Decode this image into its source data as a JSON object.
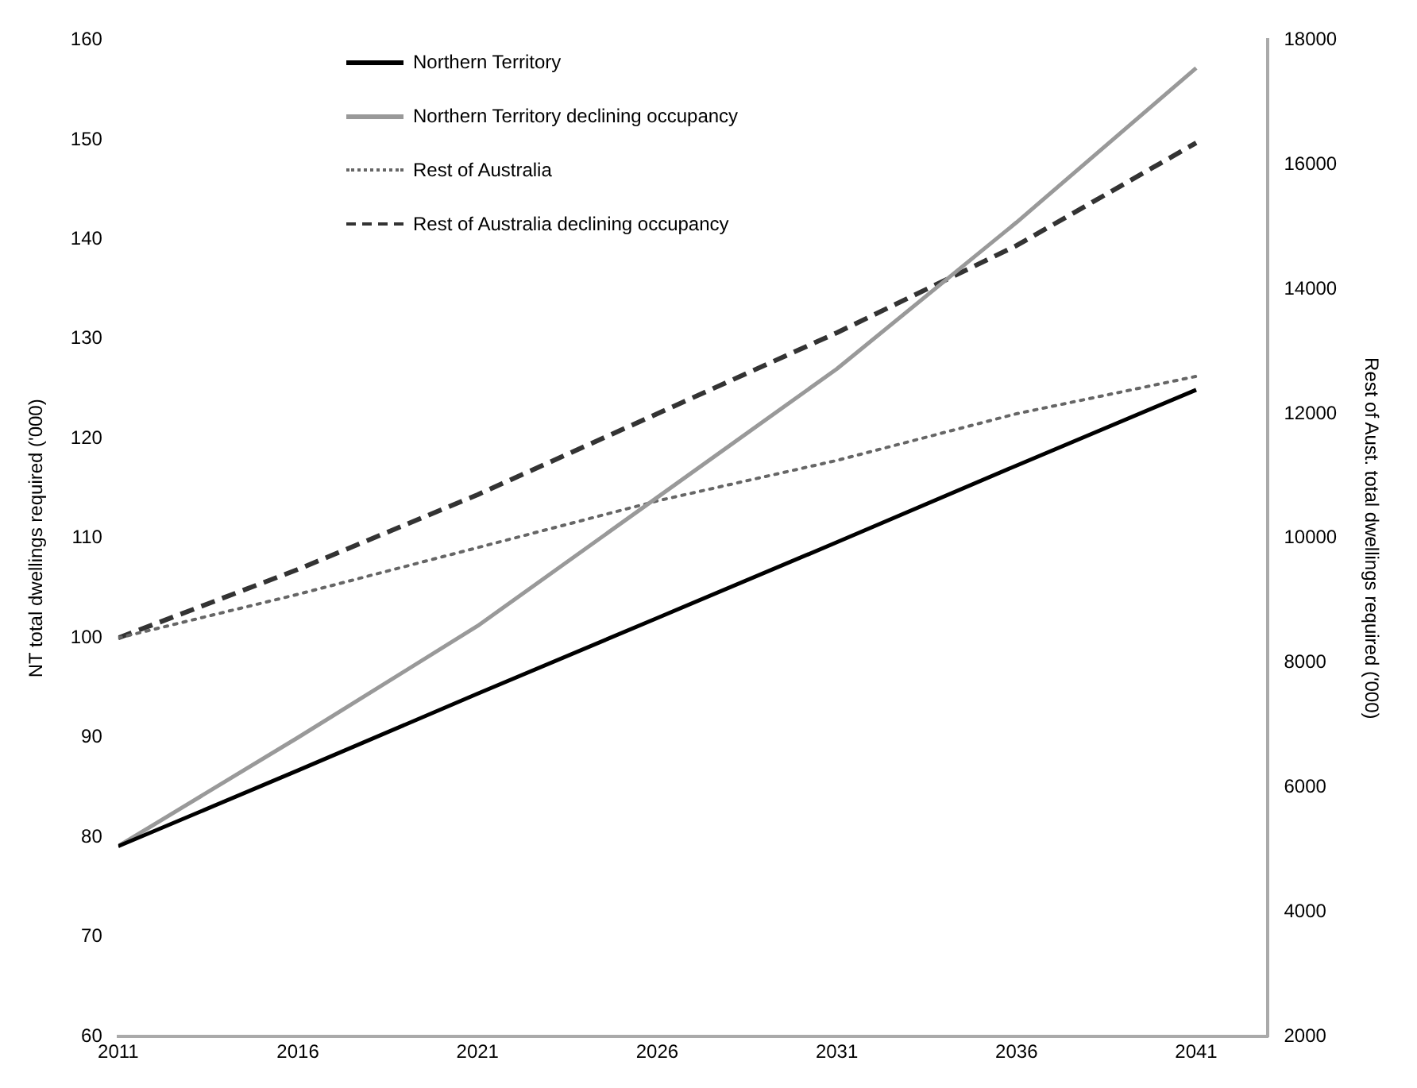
{
  "chart_data": {
    "type": "line",
    "x": [
      2011,
      2016,
      2021,
      2026,
      2031,
      2036,
      2041
    ],
    "series": [
      {
        "name": "Northern Territory",
        "color": "#000000",
        "line_style": "solid",
        "values": [
          79.1,
          86.7,
          94.4,
          102.0,
          109.6,
          117.3,
          124.9
        ]
      },
      {
        "name": "Northern Territory declining occupancy",
        "color": "#999999",
        "line_style": "solid",
        "values": [
          79.1,
          90.0,
          101.2,
          114.1,
          127.0,
          141.7,
          157.2
        ]
      },
      {
        "name": "Rest of Australia",
        "color": "#666666",
        "line_style": "dotted",
        "axis": "y2",
        "values": [
          8400,
          9100,
          9850,
          10600,
          11250,
          12000,
          12600
        ]
      },
      {
        "name": "Rest of Australia declining occupancy",
        "color": "#333333",
        "line_style": "dashed",
        "axis": "y2",
        "values": [
          8400,
          9500,
          10700,
          12000,
          13300,
          14700,
          16350
        ]
      }
    ],
    "xlim": [
      2011,
      2043
    ],
    "xticks": [
      2011,
      2016,
      2021,
      2026,
      2031,
      2036,
      2041
    ],
    "ylim": [
      60,
      160
    ],
    "yticks": [
      60,
      70,
      80,
      90,
      100,
      110,
      120,
      130,
      140,
      150,
      160
    ],
    "y2lim": [
      2000,
      18000
    ],
    "y2ticks": [
      2000,
      4000,
      6000,
      8000,
      10000,
      12000,
      14000,
      16000,
      18000
    ],
    "ylabel": "NT total dwellings required ('000)",
    "y2label": "Rest of Aust. total dwellings required ('000)",
    "grid": false,
    "legend": "top left",
    "marker": "none"
  }
}
